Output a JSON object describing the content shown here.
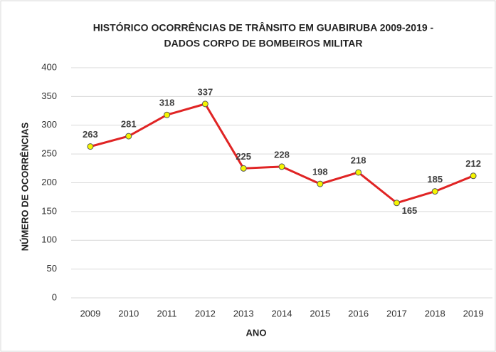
{
  "chart_data": {
    "type": "line",
    "title": [
      "HISTÓRICO OCORRÊNCIAS DE TRÂNSITO EM GUABIRUBA 2009-2019 -",
      "DADOS CORPO DE BOMBEIROS MILITAR"
    ],
    "xlabel": "ANO",
    "ylabel": "NÚMERO DE OCORRÊNCIAS",
    "categories": [
      "2009",
      "2010",
      "2011",
      "2012",
      "2013",
      "2014",
      "2015",
      "2016",
      "2017",
      "2018",
      "2019"
    ],
    "series": [
      {
        "name": "Ocorrências",
        "color": "#e02424",
        "marker_color": "#f5f500",
        "values": [
          263,
          281,
          318,
          337,
          225,
          228,
          198,
          218,
          165,
          185,
          212
        ]
      }
    ],
    "ylim": [
      0,
      400
    ],
    "yticks": [
      0,
      50,
      100,
      150,
      200,
      250,
      300,
      350,
      400
    ],
    "grid": true
  }
}
